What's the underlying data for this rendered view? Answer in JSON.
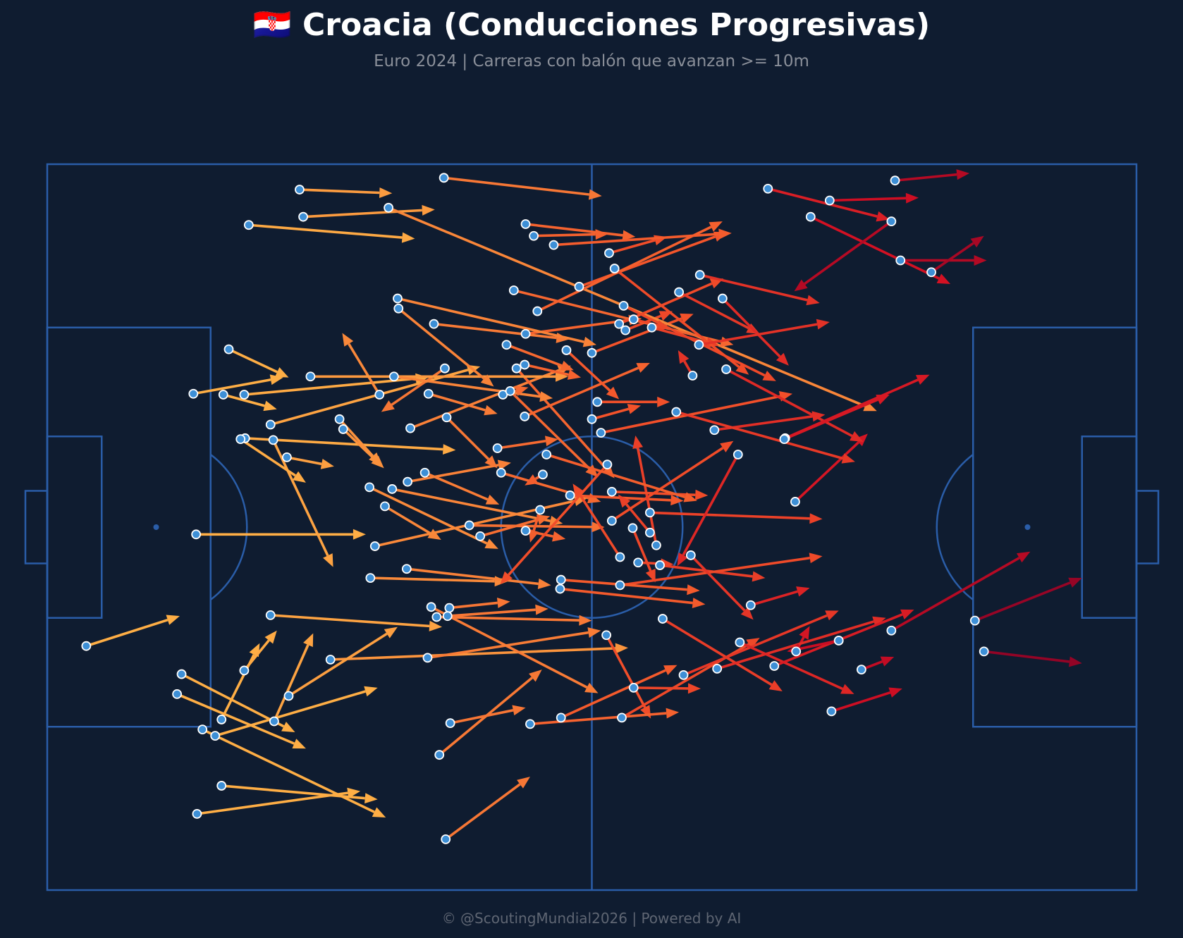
{
  "title": "🇭🇷 Croacia (Conducciones Progresivas)",
  "subtitle": "Euro 2024 | Carreras con balón que avanzan >= 10m",
  "footer": "© @ScoutingMundial2026 | Powered by AI",
  "colors": {
    "background": "#0f1c30",
    "pitch_lines": "#2a5da8",
    "start_dot": "#3d8fd6",
    "start_dot_edge": "#ffffff",
    "gradient_low": "#feae45",
    "gradient_mid": "#f3522a",
    "gradient_high": "#d20f23",
    "gradient_max": "#7c0027"
  },
  "chart_data": {
    "type": "arrow-map",
    "pitch": {
      "length_m": 120,
      "width_m": 80,
      "attack_direction": "left-to-right"
    },
    "color_encoding": "start x position (orange = own half, dark red = final third)",
    "carries": [
      [
        4.3,
        53.1,
        14.6,
        49.8
      ],
      [
        16.4,
        40.8,
        35.1,
        40.8
      ],
      [
        19.2,
        68.5,
        36.4,
        70.0
      ],
      [
        31.2,
        54.6,
        64.0,
        53.3
      ],
      [
        21.8,
        30.2,
        45.0,
        31.5
      ],
      [
        21.7,
        25.4,
        42.0,
        23.5
      ],
      [
        20.0,
        20.4,
        26.6,
        23.5
      ],
      [
        16.1,
        25.3,
        26.0,
        23.5
      ],
      [
        17.1,
        62.3,
        37.3,
        72.0
      ],
      [
        19.2,
        61.2,
        23.4,
        52.8
      ],
      [
        14.8,
        56.2,
        27.3,
        62.6
      ],
      [
        14.3,
        58.4,
        28.5,
        64.4
      ],
      [
        16.5,
        71.6,
        34.5,
        69.1
      ],
      [
        21.7,
        55.8,
        25.3,
        51.4
      ],
      [
        26.6,
        58.6,
        38.6,
        51.0
      ],
      [
        25.0,
        61.4,
        29.3,
        51.7
      ],
      [
        19.4,
        25.4,
        25.3,
        27.0
      ],
      [
        24.6,
        49.7,
        43.5,
        51.0
      ],
      [
        27.8,
        2.8,
        38.0,
        3.2
      ],
      [
        28.2,
        5.8,
        42.7,
        5.0
      ],
      [
        22.2,
        6.7,
        40.5,
        8.2
      ],
      [
        24.9,
        30.4,
        31.5,
        44.4
      ],
      [
        36.6,
        25.4,
        32.5,
        18.6
      ],
      [
        32.6,
        29.2,
        37.1,
        33.5
      ],
      [
        26.4,
        32.3,
        31.6,
        33.3
      ],
      [
        32.2,
        28.1,
        36.8,
        33.2
      ],
      [
        21.3,
        30.3,
        28.5,
        35.1
      ],
      [
        24.6,
        28.7,
        47.7,
        22.3
      ],
      [
        18.5,
        63.0,
        36.4,
        57.7
      ],
      [
        43.9,
        74.4,
        53.2,
        67.5
      ],
      [
        43.2,
        65.1,
        54.5,
        55.7
      ],
      [
        42.3,
        48.8,
        60.7,
        58.3
      ],
      [
        37.2,
        37.7,
        43.4,
        41.4
      ],
      [
        38.0,
        35.8,
        56.8,
        39.6
      ],
      [
        35.5,
        35.6,
        49.7,
        42.4
      ],
      [
        46.5,
        39.8,
        61.4,
        40.0
      ],
      [
        50.0,
        34.0,
        61.0,
        37.2
      ],
      [
        41.6,
        34.0,
        49.8,
        37.5
      ],
      [
        36.1,
        42.1,
        59.5,
        36.8
      ],
      [
        40.0,
        29.1,
        57.7,
        22.2
      ],
      [
        39.7,
        35.0,
        51.1,
        32.9
      ],
      [
        43.8,
        22.5,
        36.8,
        27.3
      ],
      [
        51.7,
        22.5,
        62.5,
        34.6
      ],
      [
        54.6,
        34.2,
        52.6,
        35.4
      ],
      [
        47.7,
        41.0,
        55.4,
        38.8
      ],
      [
        49.6,
        31.3,
        56.3,
        30.3
      ],
      [
        42.0,
        25.3,
        49.6,
        27.5
      ],
      [
        35.6,
        45.6,
        50.7,
        46.0
      ],
      [
        39.6,
        44.6,
        55.5,
        46.4
      ],
      [
        42.9,
        49.9,
        60.0,
        50.3
      ],
      [
        44.3,
        48.9,
        51.0,
        48.2
      ],
      [
        52.7,
        40.4,
        57.1,
        41.3
      ],
      [
        41.9,
        54.4,
        61.0,
        51.4
      ],
      [
        44.1,
        49.8,
        55.2,
        49.0
      ],
      [
        54.3,
        38.1,
        53.2,
        41.7
      ],
      [
        57.6,
        36.5,
        70.1,
        37.1
      ],
      [
        44.0,
        27.9,
        49.6,
        33.5
      ],
      [
        42.6,
        17.6,
        57.5,
        19.3
      ],
      [
        52.7,
        18.7,
        65.5,
        17.0
      ],
      [
        38.6,
        14.8,
        60.5,
        19.9
      ],
      [
        29.0,
        23.4,
        57.4,
        23.4
      ],
      [
        38.2,
        23.4,
        55.7,
        25.8
      ],
      [
        38.7,
        15.9,
        49.2,
        24.5
      ],
      [
        50.2,
        25.4,
        53.0,
        24.6
      ],
      [
        52.6,
        22.1,
        58.8,
        23.5
      ],
      [
        63.7,
        18.3,
        68.9,
        16.2
      ],
      [
        50.6,
        19.9,
        58.0,
        22.7
      ],
      [
        60.0,
        20.8,
        71.2,
        16.5
      ],
      [
        52.7,
        6.6,
        64.8,
        8.0
      ],
      [
        61.9,
        9.8,
        68.3,
        8.0
      ],
      [
        53.6,
        7.9,
        61.8,
        7.7
      ],
      [
        58.6,
        13.5,
        74.9,
        7.5
      ],
      [
        43.7,
        1.5,
        61.1,
        3.5
      ],
      [
        37.6,
        4.8,
        91.4,
        27.2
      ],
      [
        52.6,
        27.8,
        66.4,
        21.9
      ],
      [
        51.0,
        25.0,
        60.7,
        34.5
      ],
      [
        51.4,
        13.9,
        75.6,
        19.9
      ],
      [
        54.0,
        16.2,
        74.4,
        6.3
      ],
      [
        64.6,
        17.1,
        68.6,
        18.1
      ],
      [
        63.0,
        17.6,
        74.5,
        12.6
      ],
      [
        63.5,
        15.6,
        80.3,
        23.9
      ],
      [
        66.6,
        18.0,
        74.0,
        20.0
      ],
      [
        57.2,
        20.5,
        63.0,
        25.9
      ],
      [
        60.0,
        28.1,
        65.4,
        26.6
      ],
      [
        62.5,
        11.5,
        77.3,
        23.2
      ],
      [
        69.6,
        14.1,
        78.5,
        18.7
      ],
      [
        74.4,
        14.8,
        81.7,
        22.2
      ],
      [
        71.9,
        12.2,
        85.1,
        15.3
      ],
      [
        71.8,
        19.9,
        86.2,
        17.4
      ],
      [
        55.8,
        8.9,
        75.4,
        7.6
      ],
      [
        84.1,
        5.8,
        99.5,
        13.2
      ],
      [
        79.4,
        2.7,
        92.8,
        6.1
      ],
      [
        86.2,
        4.0,
        96.0,
        3.7
      ],
      [
        94.0,
        10.6,
        103.5,
        10.6
      ],
      [
        61.6,
        51.9,
        66.5,
        61.1
      ],
      [
        67.8,
        50.1,
        81.0,
        58.1
      ],
      [
        67.5,
        44.2,
        79.1,
        45.6
      ],
      [
        63.1,
        46.4,
        85.4,
        43.2
      ],
      [
        64.5,
        40.1,
        67.0,
        46.1
      ],
      [
        66.4,
        40.6,
        62.9,
        36.4
      ],
      [
        63.1,
        43.3,
        57.9,
        35.2
      ],
      [
        61.7,
        33.1,
        49.9,
        46.3
      ],
      [
        62.2,
        39.3,
        75.6,
        30.5
      ],
      [
        66.4,
        38.4,
        85.4,
        39.1
      ],
      [
        56.6,
        45.8,
        71.9,
        47.0
      ],
      [
        56.5,
        46.8,
        72.5,
        48.5
      ],
      [
        61.0,
        29.6,
        82.1,
        25.3
      ],
      [
        65.1,
        43.9,
        69.0,
        44.1
      ],
      [
        70.9,
        43.1,
        77.8,
        50.2
      ],
      [
        82.4,
        37.2,
        90.4,
        29.7
      ],
      [
        76.1,
        32.0,
        69.4,
        44.3
      ],
      [
        74.8,
        22.6,
        89.9,
        30.6
      ],
      [
        73.5,
        29.3,
        85.7,
        27.6
      ],
      [
        81.3,
        30.2,
        97.2,
        23.2
      ],
      [
        77.5,
        48.6,
        84.0,
        46.7
      ],
      [
        67.1,
        42.0,
        64.8,
        29.9
      ],
      [
        81.2,
        30.3,
        92.8,
        25.4
      ],
      [
        93.4,
        1.8,
        101.6,
        1.0
      ],
      [
        82.5,
        53.7,
        84.0,
        50.9
      ],
      [
        71.1,
        23.3,
        69.5,
        20.5
      ],
      [
        62.2,
        36.1,
        72.8,
        36.5
      ],
      [
        44.4,
        61.6,
        52.7,
        59.9
      ],
      [
        53.2,
        61.7,
        69.6,
        60.4
      ],
      [
        56.6,
        61.0,
        69.4,
        55.2
      ],
      [
        63.3,
        61.0,
        78.5,
        52.2
      ],
      [
        73.8,
        55.6,
        92.4,
        50.0
      ],
      [
        64.6,
        57.7,
        72.0,
        57.8
      ],
      [
        70.1,
        56.3,
        87.2,
        49.2
      ],
      [
        76.3,
        52.7,
        88.9,
        58.4
      ],
      [
        80.1,
        55.3,
        95.5,
        49.1
      ],
      [
        93.0,
        6.3,
        82.3,
        14.0
      ],
      [
        86.4,
        60.3,
        94.2,
        57.8
      ],
      [
        87.2,
        52.5,
        81.5,
        53.7
      ],
      [
        89.7,
        55.7,
        93.3,
        54.3
      ],
      [
        55.0,
        32.0,
        71.6,
        37.1
      ],
      [
        60.6,
        26.2,
        68.6,
        26.2
      ],
      [
        69.3,
        27.3,
        89.0,
        32.8
      ],
      [
        97.4,
        11.9,
        103.2,
        7.9
      ],
      [
        93.0,
        51.4,
        108.3,
        42.7
      ],
      [
        103.2,
        53.7,
        114.0,
        55.0
      ],
      [
        102.2,
        50.3,
        114.0,
        45.6
      ]
    ]
  }
}
